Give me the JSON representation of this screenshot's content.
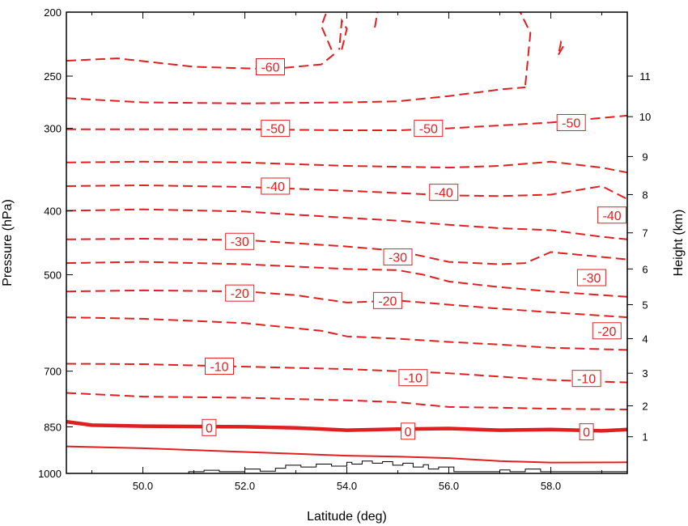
{
  "chart_data": {
    "type": "line",
    "subtype": "contour",
    "title": "",
    "xlabel": "Latitude (deg)",
    "ylabel_left": "Pressure (hPa)",
    "ylabel_right": "Height (km)",
    "xlim": [
      48.5,
      59.5
    ],
    "ylim_pressure": [
      1000,
      200
    ],
    "y_scale": "log",
    "x_ticks": [
      50,
      52,
      54,
      56,
      58
    ],
    "x_tick_labels": [
      "50.0",
      "52.0",
      "54.0",
      "56.0",
      "58.0"
    ],
    "y_left_ticks": [
      200,
      250,
      300,
      400,
      500,
      700,
      850,
      1000
    ],
    "y_left_tick_labels": [
      "200",
      "250",
      "300",
      "400",
      "500",
      "700",
      "850",
      "1000"
    ],
    "y_right_ticks": [
      1,
      2,
      3,
      4,
      5,
      6,
      7,
      8,
      9,
      10,
      11
    ],
    "y_right_tick_pressure": [
      880,
      790,
      705,
      625,
      555,
      490,
      432,
      378,
      331,
      288,
      250
    ],
    "y_right_tick_labels": [
      "1",
      "2",
      "3",
      "4",
      "5",
      "6",
      "7",
      "8",
      "9",
      "10",
      "11"
    ],
    "grid": false,
    "line_color": "#e02020",
    "terrain_color": "#000000",
    "contours": [
      {
        "level": 10,
        "style": "solid",
        "x": [
          48.5,
          50,
          52,
          54,
          55,
          56,
          57,
          58,
          59.5
        ],
        "p": [
          910,
          916,
          928,
          940,
          943,
          948,
          958,
          963,
          962
        ]
      },
      {
        "level": 0,
        "style": "bold",
        "x": [
          48.5,
          49,
          50,
          52,
          53,
          54,
          55,
          56,
          57,
          58,
          59,
          59.5
        ],
        "p": [
          835,
          845,
          848,
          850,
          853,
          860,
          857,
          855,
          860,
          858,
          862,
          858
        ]
      },
      {
        "level": -5,
        "style": "dashed",
        "x": [
          48.5,
          50,
          52,
          54,
          55,
          56,
          57,
          58,
          59.5
        ],
        "p": [
          755,
          765,
          768,
          775,
          780,
          793,
          795,
          798,
          800
        ]
      },
      {
        "level": -10,
        "style": "dashed",
        "x": [
          48.5,
          50,
          52,
          54,
          56,
          58,
          59.5
        ],
        "p": [
          682,
          683,
          689,
          695,
          705,
          722,
          728
        ]
      },
      {
        "level": -15,
        "style": "dashed",
        "x": [
          48.5,
          50,
          52,
          53.5,
          54,
          55,
          56,
          57,
          58,
          59.5
        ],
        "p": [
          580,
          583,
          592,
          608,
          620,
          625,
          632,
          638,
          645,
          650
        ]
      },
      {
        "level": -20,
        "style": "dashed",
        "x": [
          48.5,
          50,
          52,
          53,
          54,
          55,
          56,
          57,
          58,
          59.5
        ],
        "p": [
          530,
          528,
          530,
          537,
          551,
          547,
          555,
          563,
          570,
          580
        ]
      },
      {
        "level": -25,
        "style": "dashed",
        "x": [
          48.5,
          50,
          52,
          54,
          55,
          55.5,
          56,
          57,
          58,
          59.5
        ],
        "p": [
          480,
          478,
          482,
          490,
          492,
          500,
          512,
          522,
          530,
          540
        ]
      },
      {
        "level": -30,
        "style": "dashed",
        "x": [
          48.5,
          50,
          52,
          54,
          55,
          56,
          57,
          57.5,
          58,
          59.5
        ],
        "p": [
          442,
          441,
          443,
          453,
          460,
          478,
          482,
          480,
          462,
          474
        ]
      },
      {
        "level": -35,
        "style": "dashed",
        "x": [
          48.5,
          50,
          52,
          54,
          55,
          56,
          57,
          58,
          59,
          59.5
        ],
        "p": [
          400,
          398,
          401,
          410,
          414,
          420,
          425,
          428,
          438,
          442
        ]
      },
      {
        "level": -40,
        "style": "dashed",
        "x": [
          48.5,
          50,
          52,
          54,
          56,
          57,
          58,
          59,
          59.5
        ],
        "p": [
          367,
          366,
          368,
          373,
          379,
          380,
          378,
          367,
          384
        ]
      },
      {
        "level": -45,
        "style": "dashed",
        "x": [
          48.5,
          50,
          52,
          54,
          56,
          57,
          58,
          59,
          59.5
        ],
        "p": [
          338,
          337,
          338,
          342,
          344,
          342,
          337,
          344,
          350
        ]
      },
      {
        "level": -50,
        "style": "dashed",
        "x": [
          48.5,
          50,
          52,
          54,
          55,
          56,
          57,
          58,
          59.5
        ],
        "p": [
          301,
          301,
          301,
          302,
          302,
          300,
          297,
          294,
          287
        ]
      },
      {
        "level": -55,
        "style": "dashed",
        "x": [
          48.5,
          50,
          52,
          54,
          55,
          56,
          57,
          57.5
        ],
        "p": [
          270,
          274,
          275,
          274,
          273,
          268,
          262,
          260
        ]
      },
      {
        "level": -60,
        "style": "dashed",
        "x": [
          48.5,
          49.5,
          51,
          52.5,
          53.5,
          53.8
        ],
        "p": [
          237,
          235,
          242,
          244,
          240,
          230
        ]
      }
    ],
    "upper_dashed_segments": [
      {
        "x": [
          53.7,
          53.5,
          53.6
        ],
        "p": [
          228,
          210,
          200
        ]
      },
      {
        "x": [
          53.9,
          54.0,
          53.9,
          53.85
        ],
        "p": [
          228,
          212,
          206,
          228
        ]
      },
      {
        "x": [
          54.55,
          54.6
        ],
        "p": [
          211,
          200
        ]
      },
      {
        "x": [
          57.5,
          57.6,
          57.4
        ],
        "p": [
          258,
          215,
          200
        ]
      },
      {
        "x": [
          58.15,
          58.25,
          58.2,
          58.15
        ],
        "p": [
          232,
          225,
          222,
          232
        ]
      }
    ],
    "contour_labels": [
      {
        "text": "-60",
        "x": 52.5,
        "p": 242
      },
      {
        "text": "-50",
        "x": 52.6,
        "p": 300
      },
      {
        "text": "-50",
        "x": 55.6,
        "p": 300
      },
      {
        "text": "-50",
        "x": 58.4,
        "p": 294
      },
      {
        "text": "-40",
        "x": 52.6,
        "p": 367
      },
      {
        "text": "-40",
        "x": 55.9,
        "p": 375
      },
      {
        "text": "-40",
        "x": 59.2,
        "p": 406
      },
      {
        "text": "-30",
        "x": 51.9,
        "p": 445
      },
      {
        "text": "-30",
        "x": 55.0,
        "p": 470
      },
      {
        "text": "-30",
        "x": 58.8,
        "p": 505
      },
      {
        "text": "-20",
        "x": 51.9,
        "p": 533
      },
      {
        "text": "-20",
        "x": 54.8,
        "p": 547
      },
      {
        "text": "-20",
        "x": 59.1,
        "p": 608
      },
      {
        "text": "-10",
        "x": 51.5,
        "p": 688
      },
      {
        "text": "-10",
        "x": 55.3,
        "p": 716
      },
      {
        "text": "-10",
        "x": 58.7,
        "p": 718
      },
      {
        "text": "0",
        "x": 51.3,
        "p": 852
      },
      {
        "text": "0",
        "x": 55.2,
        "p": 863
      },
      {
        "text": "0",
        "x": 58.7,
        "p": 865
      }
    ],
    "terrain": {
      "x": [
        48.5,
        50.9,
        50.9,
        51.2,
        51.2,
        51.5,
        51.5,
        52.0,
        52.0,
        52.3,
        52.3,
        52.6,
        52.6,
        52.8,
        52.8,
        53.1,
        53.1,
        53.4,
        53.4,
        53.7,
        53.7,
        54.0,
        54.0,
        54.1,
        54.1,
        54.3,
        54.3,
        54.5,
        54.5,
        54.7,
        54.7,
        54.9,
        54.9,
        55.1,
        55.1,
        55.3,
        55.3,
        55.5,
        55.5,
        55.6,
        55.6,
        55.8,
        55.8,
        56.1,
        56.1,
        57.0,
        57.0,
        57.2,
        57.2,
        57.5,
        57.5,
        57.8,
        57.8,
        59.5
      ],
      "p": [
        1000,
        1000,
        994,
        994,
        989,
        989,
        994,
        994,
        985,
        985,
        992,
        992,
        982,
        982,
        972,
        972,
        978,
        978,
        968,
        968,
        975,
        975,
        962,
        962,
        968,
        968,
        958,
        958,
        965,
        965,
        960,
        960,
        972,
        972,
        965,
        965,
        978,
        978,
        970,
        970,
        985,
        985,
        978,
        978,
        994,
        994,
        988,
        988,
        994,
        994,
        985,
        985,
        994,
        994
      ]
    }
  }
}
